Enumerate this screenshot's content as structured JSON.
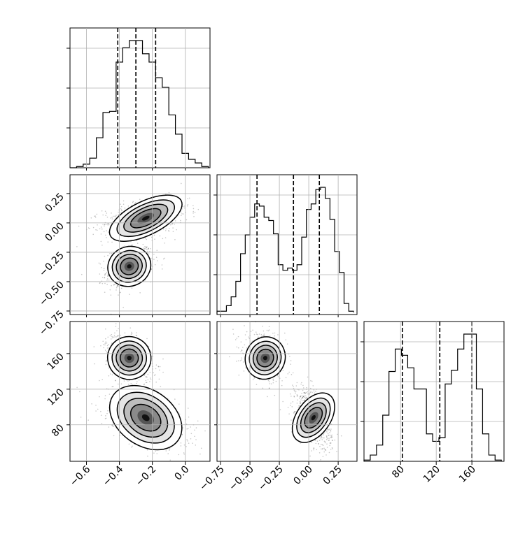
{
  "chart_data": {
    "type": "corner",
    "parameters": [
      "",
      "",
      ""
    ],
    "ranges": {
      "p0": [
        -0.7,
        0.15
      ],
      "p1": [
        -0.78,
        0.41
      ],
      "p2": [
        39,
        196
      ]
    },
    "grid": true,
    "quantile_lines": {
      "p0": [
        -0.41,
        -0.3,
        -0.18
      ],
      "p1": [
        -0.44,
        -0.13,
        0.09
      ],
      "p2": [
        82,
        124,
        160
      ]
    },
    "ticks": {
      "p0": {
        "values": [
          -0.6,
          -0.4,
          -0.2,
          0.0
        ],
        "labels": [
          "−0.6",
          "−0.4",
          "−0.2",
          "0.0"
        ]
      },
      "p1": {
        "values": [
          -0.75,
          -0.5,
          -0.25,
          0.0,
          0.25
        ],
        "labels": [
          "−0.75",
          "−0.50",
          "−0.25",
          "0.00",
          "0.25"
        ]
      },
      "p2": {
        "values": [
          80,
          120,
          160
        ],
        "labels": [
          "80",
          "120",
          "160"
        ]
      }
    },
    "histograms": {
      "p0": {
        "bin_edges": [
          -0.7,
          -0.66,
          -0.62,
          -0.58,
          -0.54,
          -0.5,
          -0.46,
          -0.42,
          -0.38,
          -0.34,
          -0.3,
          -0.26,
          -0.22,
          -0.18,
          -0.14,
          -0.1,
          -0.06,
          -0.02,
          0.02,
          0.06,
          0.1,
          0.14
        ],
        "counts": [
          0,
          1,
          3,
          8,
          25,
          46,
          47,
          88,
          100,
          106,
          106,
          95,
          88,
          75,
          67,
          44,
          28,
          12,
          7,
          4,
          1,
          0
        ]
      },
      "p1": {
        "bin_edges": [
          -0.78,
          -0.74,
          -0.7,
          -0.66,
          -0.62,
          -0.58,
          -0.54,
          -0.5,
          -0.46,
          -0.42,
          -0.38,
          -0.34,
          -0.3,
          -0.26,
          -0.22,
          -0.18,
          -0.14,
          -0.1,
          -0.06,
          -0.02,
          0.02,
          0.06,
          0.1,
          0.14,
          0.18,
          0.22,
          0.26,
          0.3,
          0.34,
          0.38
        ],
        "counts": [
          3,
          3,
          8,
          16,
          30,
          55,
          72,
          88,
          100,
          98,
          88,
          85,
          73,
          45,
          40,
          42,
          40,
          45,
          70,
          95,
          100,
          113,
          115,
          105,
          86,
          57,
          38,
          10,
          3,
          2
        ]
      },
      "p2": {
        "bin_edges": [
          39,
          46,
          53,
          60,
          67,
          74,
          81,
          88,
          95,
          102,
          109,
          116,
          123,
          130,
          137,
          144,
          151,
          158,
          165,
          172,
          179,
          186,
          193
        ],
        "counts": [
          1,
          5,
          13,
          37,
          72,
          90,
          85,
          75,
          58,
          58,
          22,
          16,
          19,
          62,
          73,
          90,
          102,
          102,
          58,
          22,
          5,
          1
        ]
      }
    },
    "clusters": [
      {
        "p0_mean": -0.34,
        "p1_mean": -0.37,
        "p2_mean": 155,
        "p0_sd": 0.055,
        "p1_sd": 0.07,
        "p2_sd": 10
      },
      {
        "p0_mean": -0.24,
        "p1_mean": 0.04,
        "p2_mean": 88,
        "p0_sd": 0.1,
        "p1_sd": 0.06,
        "p2_sd": 13
      }
    ]
  }
}
